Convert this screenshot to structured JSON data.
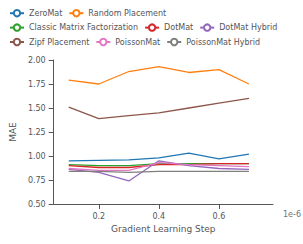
{
  "chart_data": {
    "type": "line",
    "xlabel": "Gradient Learning Step",
    "ylabel": "MAE",
    "annotations": [
      "1e-6"
    ],
    "x": [
      0.1,
      0.2,
      0.3,
      0.4,
      0.5,
      0.6,
      0.7
    ],
    "series": [
      {
        "name": "ZeroMat",
        "color": "#1f77b4",
        "values": [
          0.95,
          0.955,
          0.96,
          0.98,
          1.03,
          0.97,
          1.02
        ]
      },
      {
        "name": "Random Placement",
        "color": "#ff7f0e",
        "values": [
          1.79,
          1.75,
          1.88,
          1.93,
          1.87,
          1.9,
          1.75
        ]
      },
      {
        "name": "Classic Matrix Factorization",
        "color": "#2ca02c",
        "values": [
          0.91,
          0.9,
          0.9,
          0.92,
          0.92,
          0.92,
          0.92
        ]
      },
      {
        "name": "DotMat",
        "color": "#d62728",
        "values": [
          0.9,
          0.88,
          0.88,
          0.91,
          0.91,
          0.92,
          0.92
        ]
      },
      {
        "name": "DotMat Hybrid",
        "color": "#9467bd",
        "values": [
          0.86,
          0.83,
          0.74,
          0.95,
          0.9,
          0.87,
          0.86
        ]
      },
      {
        "name": "Zipf Placement",
        "color": "#8c564b",
        "values": [
          1.51,
          1.39,
          1.42,
          1.45,
          1.5,
          1.55,
          1.6
        ]
      },
      {
        "name": "PoissonMat",
        "color": "#e377c2",
        "values": [
          0.87,
          0.85,
          0.85,
          0.93,
          0.91,
          0.9,
          0.89
        ]
      },
      {
        "name": "PoissonMat Hybrid",
        "color": "#7f7f7f",
        "values": [
          0.84,
          0.84,
          0.83,
          0.84,
          0.84,
          0.84,
          0.84
        ]
      }
    ],
    "xlim": [
      0.05,
      0.78
    ],
    "xticks": [
      0.2,
      0.4,
      0.6
    ],
    "ylim": [
      0.5,
      2.0
    ],
    "yticks": [
      {
        "value": 0.5,
        "label": "0.50"
      },
      {
        "value": 0.75,
        "label": "0.75"
      },
      {
        "value": 1.0,
        "label": "1.00"
      },
      {
        "value": 1.25,
        "label": "1.25"
      },
      {
        "value": 1.5,
        "label": "1.50"
      },
      {
        "value": 1.75,
        "label": "1.75"
      },
      {
        "value": 2.0,
        "label": "2.00"
      }
    ],
    "grid": false,
    "legend": "top"
  }
}
